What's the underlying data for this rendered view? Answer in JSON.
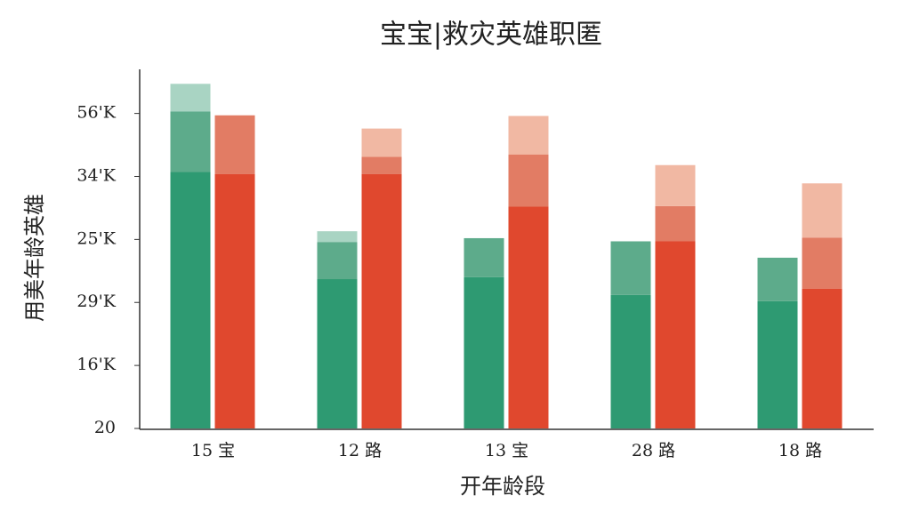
{
  "chart_data": {
    "type": "bar",
    "title": "宝宝|救灾英雄职匿",
    "x_label": "开年龄段",
    "y_label": "用美年龄英雄",
    "categories": [
      "15 宝",
      "12 路",
      "13 宝",
      "28 路",
      "18 路"
    ],
    "series": [
      {
        "stack": "green",
        "color": "#2e9a72",
        "values": [
          4.07,
          2.37,
          2.4,
          2.12,
          2.02
        ]
      },
      {
        "stack": "green",
        "color": "#5dab8b",
        "values": [
          0.96,
          0.59,
          0.62,
          0.85,
          0.69
        ]
      },
      {
        "stack": "green",
        "color": "#a9d4c3",
        "values": [
          0.44,
          0.17,
          0,
          0,
          0
        ]
      },
      {
        "stack": "red",
        "color": "#e0482e",
        "values": [
          4.04,
          4.04,
          3.52,
          2.97,
          2.22
        ]
      },
      {
        "stack": "red",
        "color": "#e27c64",
        "values": [
          0.93,
          0.27,
          0.83,
          0.56,
          0.81
        ]
      },
      {
        "stack": "red",
        "color": "#f1b8a3",
        "values": [
          0,
          0.45,
          0.61,
          0.65,
          0.86
        ]
      }
    ],
    "ylim": [
      0,
      5.7
    ],
    "yticks": [
      {
        "value": 0,
        "label": "20"
      },
      {
        "value": 1,
        "label": "16'K"
      },
      {
        "value": 2,
        "label": "29'K"
      },
      {
        "value": 3,
        "label": "25'K"
      },
      {
        "value": 4,
        "label": "34'K"
      },
      {
        "value": 5,
        "label": "56'K"
      }
    ]
  }
}
